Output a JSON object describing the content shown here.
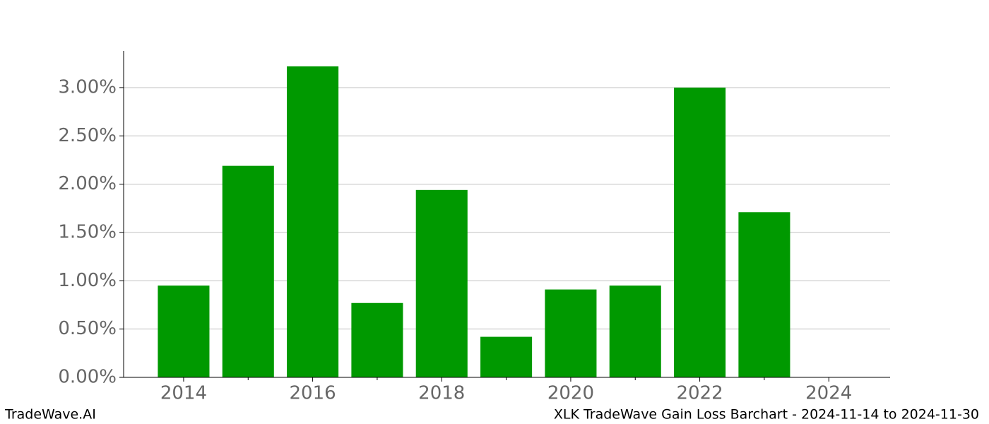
{
  "chart_data": {
    "type": "bar",
    "x": [
      2014,
      2015,
      2016,
      2017,
      2018,
      2019,
      2020,
      2021,
      2022,
      2023
    ],
    "values": [
      0.95,
      2.19,
      3.22,
      0.77,
      1.94,
      0.42,
      0.91,
      0.95,
      3.0,
      1.71
    ],
    "color": "#009900",
    "xlim": [
      2013.07,
      2024.95
    ],
    "xticks": [
      2014,
      2016,
      2018,
      2020,
      2022,
      2024
    ],
    "xticks_minor": [
      2015,
      2017,
      2019,
      2021,
      2023
    ],
    "ylim": [
      0,
      3.38
    ],
    "yticks": [
      {
        "value": 0,
        "label": "0.00%"
      },
      {
        "value": 0.5,
        "label": "0.50%"
      },
      {
        "value": 1,
        "label": "1.00%"
      },
      {
        "value": 1.5,
        "label": "1.50%"
      },
      {
        "value": 2,
        "label": "2.00%"
      },
      {
        "value": 2.5,
        "label": "2.50%"
      },
      {
        "value": 3,
        "label": "3.00%"
      }
    ],
    "grid": true
  },
  "footer": {
    "left": "TradeWave.AI",
    "right": "XLK TradeWave Gain Loss Barchart - 2024-11-14 to 2024-11-30"
  }
}
